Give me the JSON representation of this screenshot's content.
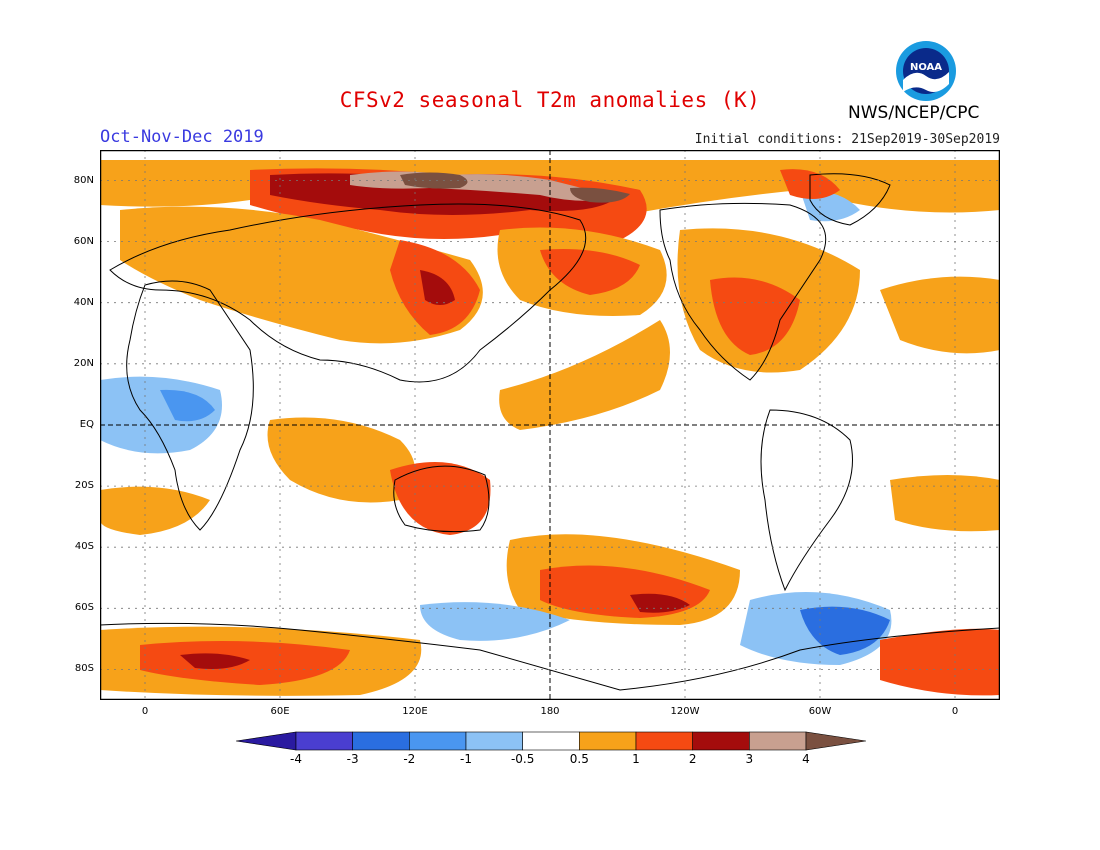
{
  "header": {
    "title": "CFSv2 seasonal T2m anomalies (K)",
    "period": "Oct-Nov-Dec 2019",
    "initial_conditions": "Initial conditions: 21Sep2019-30Sep2019",
    "agency": "NWS/NCEP/CPC",
    "logo_text": "NOAA"
  },
  "map": {
    "lat_labels": [
      "80N",
      "60N",
      "40N",
      "20N",
      "EQ",
      "20S",
      "40S",
      "60S",
      "80S"
    ],
    "lon_labels": [
      "0",
      "60E",
      "120E",
      "180",
      "120W",
      "60W",
      "0"
    ],
    "lon_range": [
      -20,
      380
    ],
    "lat_range": [
      -90,
      90
    ],
    "land_color": "#ffffff",
    "grid": true
  },
  "colorbar": {
    "labels": [
      "-4",
      "-3",
      "-2",
      "-1",
      "-0.5",
      "0.5",
      "1",
      "2",
      "3",
      "4"
    ],
    "colors": [
      "#2a1aa0",
      "#4a3ed0",
      "#2a6ee0",
      "#4a96f0",
      "#8cc2f5",
      "#ffffff",
      "#f7a21a",
      "#f54a12",
      "#a40c0c",
      "#c8a090",
      "#7a5040"
    ]
  },
  "colors": {
    "title": "#e00000",
    "period": "#3a3ae0",
    "warm1": "#f7a21a",
    "warm2": "#f54a12",
    "warm3": "#a40c0c",
    "warm4": "#c8a090",
    "warm5": "#7a5040",
    "cool1": "#8cc2f5",
    "cool2": "#4a96f0",
    "cool3": "#2a6ee0"
  }
}
